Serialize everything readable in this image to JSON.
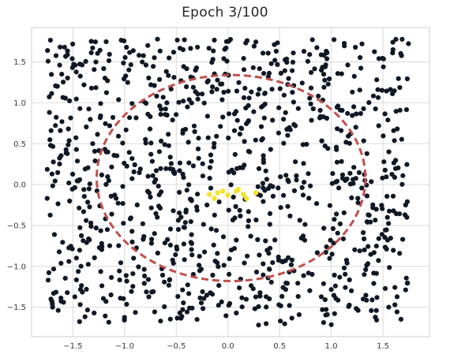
{
  "chart_data": {
    "type": "scatter",
    "title": "Epoch 3/100",
    "xlabel": "",
    "ylabel": "",
    "xlim": [
      -1.9,
      1.95
    ],
    "ylim": [
      -1.86,
      1.92
    ],
    "x_ticks": [
      -1.5,
      -1.0,
      -0.5,
      0.0,
      0.5,
      1.0,
      1.5
    ],
    "y_ticks": [
      -1.5,
      -1.0,
      -0.5,
      0.0,
      0.5,
      1.0,
      1.5
    ],
    "x_tick_labels": [
      "−1.5",
      "−1.0",
      "−0.5",
      "0.0",
      "0.5",
      "1.0",
      "1.5"
    ],
    "y_tick_labels": [
      "−1.5",
      "−1.0",
      "−0.5",
      "0.0",
      "0.5",
      "1.0",
      "1.5"
    ],
    "grid": true,
    "legend": "none",
    "point_color": "#0f1824",
    "highlight_color": "#f3e32e",
    "boundary_color": "#c0504d",
    "boundary": {
      "shape": "ellipse",
      "center": [
        0.03,
        0.08
      ],
      "rx": 1.3,
      "ry": 1.26,
      "style": "dashed"
    },
    "highlighted_points": [
      [
        -0.05,
        -0.08
      ],
      [
        -0.1,
        -0.1
      ],
      [
        0.0,
        -0.13
      ],
      [
        0.1,
        -0.06
      ],
      [
        0.15,
        -0.12
      ],
      [
        0.18,
        -0.17
      ],
      [
        0.27,
        -0.1
      ],
      [
        -0.13,
        -0.17
      ],
      [
        0.08,
        -0.08
      ],
      [
        -0.18,
        -0.12
      ]
    ],
    "points_note": "approx. 1000 points uniformly scattered over x∈[-1.75,1.75], y∈[-1.72,1.78]"
  }
}
